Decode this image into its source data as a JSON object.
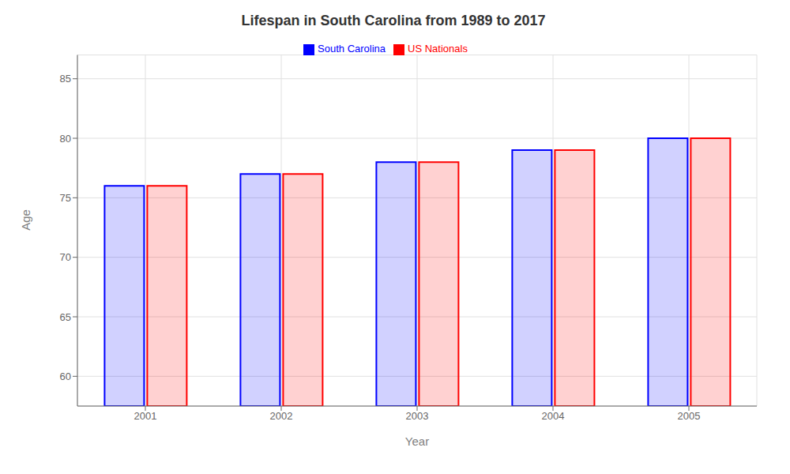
{
  "chart_data": {
    "type": "bar",
    "title": "Lifespan in South Carolina from 1989 to 2017",
    "x_label": "Year",
    "y_label": "Age",
    "categories": [
      "2001",
      "2002",
      "2003",
      "2004",
      "2005"
    ],
    "series": [
      {
        "name": "South Carolina",
        "color": "#0000ff",
        "values": [
          76.0,
          77.0,
          78.0,
          79.0,
          80.0
        ]
      },
      {
        "name": "US Nationals",
        "color": "#ff0000",
        "values": [
          76.0,
          77.0,
          78.0,
          79.0,
          80.0
        ]
      }
    ],
    "ylim": [
      57.5,
      87
    ],
    "yticks": [
      60,
      65,
      70,
      75,
      80,
      85
    ],
    "grid": true,
    "legend": "top"
  }
}
